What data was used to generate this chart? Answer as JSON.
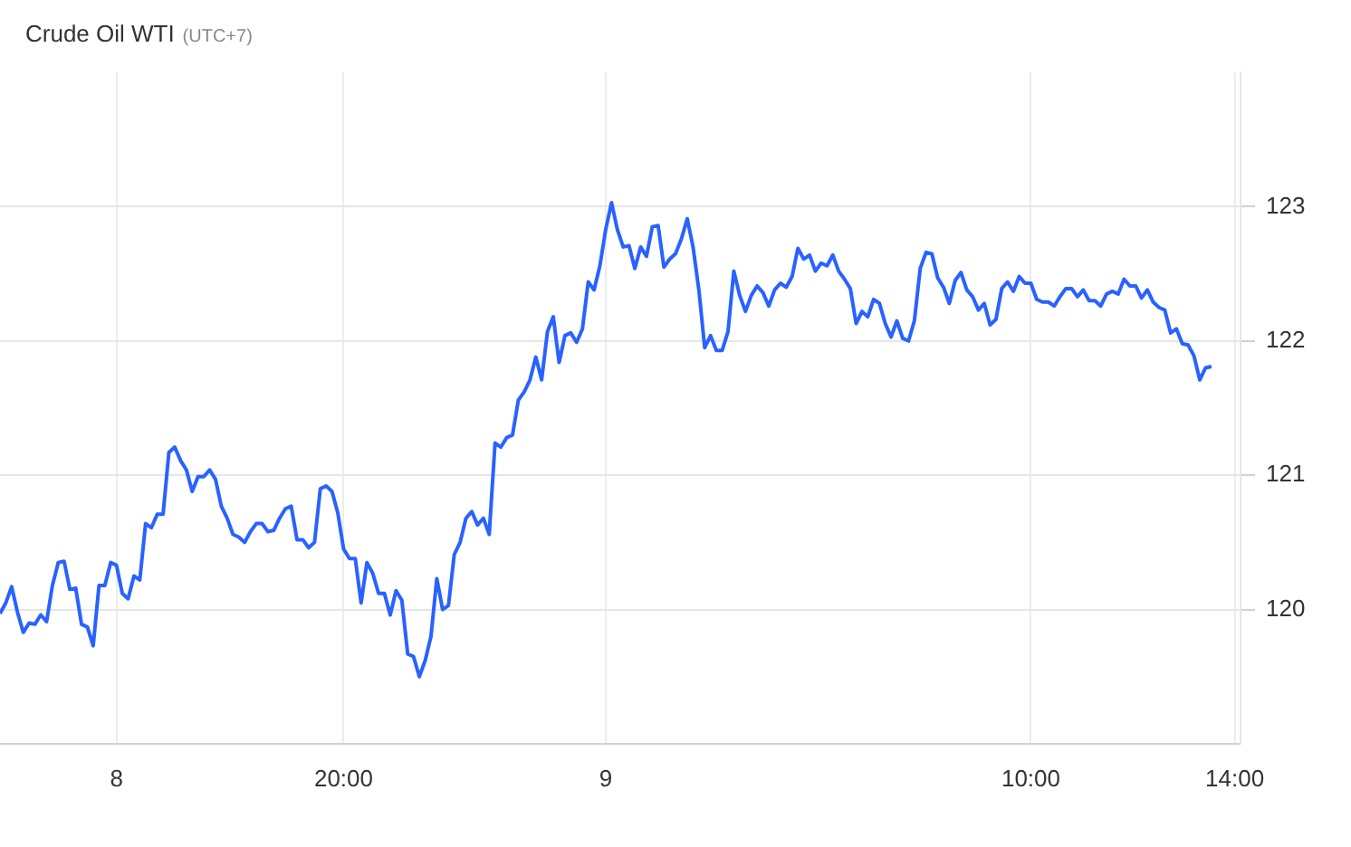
{
  "chart_data": {
    "type": "line",
    "title": "Crude Oil WTI",
    "subtitle": "(UTC+7)",
    "ylim": [
      119,
      124
    ],
    "categories": [
      null,
      null,
      null,
      null,
      null,
      null,
      null,
      null,
      null,
      null,
      null,
      null,
      null,
      null,
      null,
      null,
      null,
      null,
      null,
      null,
      "8",
      null,
      null,
      null,
      null,
      null,
      null,
      null,
      null,
      null,
      null,
      null,
      null,
      null,
      null,
      null,
      null,
      null,
      null,
      null,
      null,
      null,
      null,
      null,
      null,
      null,
      null,
      null,
      null,
      null,
      null,
      null,
      null,
      null,
      null,
      null,
      null,
      null,
      null,
      "20:00",
      null,
      null,
      null,
      null,
      null,
      null,
      null,
      null,
      null,
      null,
      null,
      null,
      null,
      null,
      null,
      null,
      null,
      null,
      null,
      null,
      null,
      null,
      null,
      null,
      null,
      null,
      null,
      null,
      null,
      null,
      null,
      null,
      null,
      null,
      null,
      null,
      null,
      null,
      null,
      null,
      null,
      null,
      null,
      null,
      "9",
      null,
      null,
      null,
      null,
      null,
      null,
      null,
      null,
      null,
      null,
      null,
      null,
      null,
      null,
      null,
      null,
      null,
      null,
      null,
      null,
      null,
      null,
      null,
      null,
      null,
      null,
      null,
      null,
      null,
      null,
      null,
      null,
      null,
      null,
      null,
      null,
      null,
      null,
      null,
      null,
      null,
      null,
      null,
      null,
      null,
      null,
      null,
      null,
      null,
      null,
      null,
      null,
      null,
      null,
      null,
      null,
      null,
      null,
      null,
      null,
      null,
      null,
      null,
      null,
      null,
      null,
      null,
      null,
      null,
      null,
      null,
      null,
      "10:00",
      null,
      null,
      null,
      null,
      null,
      null,
      null,
      null,
      null,
      null,
      null,
      null,
      null,
      null,
      null,
      null,
      null,
      null,
      null,
      null,
      null,
      null,
      null,
      null,
      null,
      null,
      null,
      null,
      null,
      null,
      null,
      null,
      null,
      null,
      "14:00",
      null
    ],
    "yticks": [
      120,
      121,
      122,
      123
    ],
    "grid": true,
    "series": [
      {
        "color": "#2962ff",
        "values": [
          119.97,
          120.05,
          120.17,
          119.98,
          119.83,
          119.9,
          119.89,
          119.96,
          119.91,
          120.18,
          120.35,
          120.36,
          120.15,
          120.16,
          119.89,
          119.87,
          119.73,
          120.18,
          120.18,
          120.35,
          120.33,
          120.12,
          120.08,
          120.25,
          120.22,
          120.64,
          120.61,
          120.71,
          120.71,
          121.17,
          121.21,
          121.11,
          121.04,
          120.88,
          120.99,
          120.99,
          121.04,
          120.97,
          120.77,
          120.68,
          120.56,
          120.54,
          120.5,
          120.58,
          120.64,
          120.64,
          120.58,
          120.59,
          120.68,
          120.75,
          120.77,
          120.52,
          120.52,
          120.46,
          120.5,
          120.9,
          120.92,
          120.88,
          120.72,
          120.45,
          120.38,
          120.38,
          120.05,
          120.35,
          120.27,
          120.12,
          120.12,
          119.96,
          120.14,
          120.07,
          119.67,
          119.65,
          119.5,
          119.62,
          119.8,
          120.23,
          120.0,
          120.03,
          120.41,
          120.5,
          120.68,
          120.73,
          120.63,
          120.68,
          120.56,
          121.24,
          121.21,
          121.28,
          121.3,
          121.56,
          121.62,
          121.71,
          121.88,
          121.71,
          122.07,
          122.18,
          121.84,
          122.04,
          122.06,
          121.99,
          122.09,
          122.44,
          122.38,
          122.56,
          122.83,
          123.03,
          122.83,
          122.7,
          122.71,
          122.54,
          122.7,
          122.63,
          122.85,
          122.86,
          122.55,
          122.61,
          122.65,
          122.76,
          122.91,
          122.7,
          122.38,
          121.95,
          122.04,
          121.93,
          121.93,
          122.07,
          122.52,
          122.34,
          122.22,
          122.34,
          122.41,
          122.36,
          122.26,
          122.38,
          122.43,
          122.4,
          122.48,
          122.69,
          122.61,
          122.64,
          122.52,
          122.58,
          122.56,
          122.64,
          122.52,
          122.46,
          122.39,
          122.13,
          122.22,
          122.18,
          122.31,
          122.28,
          122.13,
          122.03,
          122.15,
          122.02,
          122.0,
          122.15,
          122.54,
          122.66,
          122.65,
          122.47,
          122.4,
          122.28,
          122.45,
          122.51,
          122.38,
          122.33,
          122.23,
          122.28,
          122.12,
          122.16,
          122.39,
          122.44,
          122.37,
          122.48,
          122.43,
          122.43,
          122.31,
          122.29,
          122.29,
          122.26,
          122.33,
          122.39,
          122.39,
          122.33,
          122.38,
          122.3,
          122.3,
          122.26,
          122.35,
          122.37,
          122.35,
          122.46,
          122.41,
          122.41,
          122.32,
          122.38,
          122.29,
          122.25,
          122.23,
          122.06,
          122.09,
          121.98,
          121.97,
          121.89,
          121.71,
          121.8,
          121.81,
          null,
          null,
          null,
          null,
          null
        ]
      }
    ]
  }
}
